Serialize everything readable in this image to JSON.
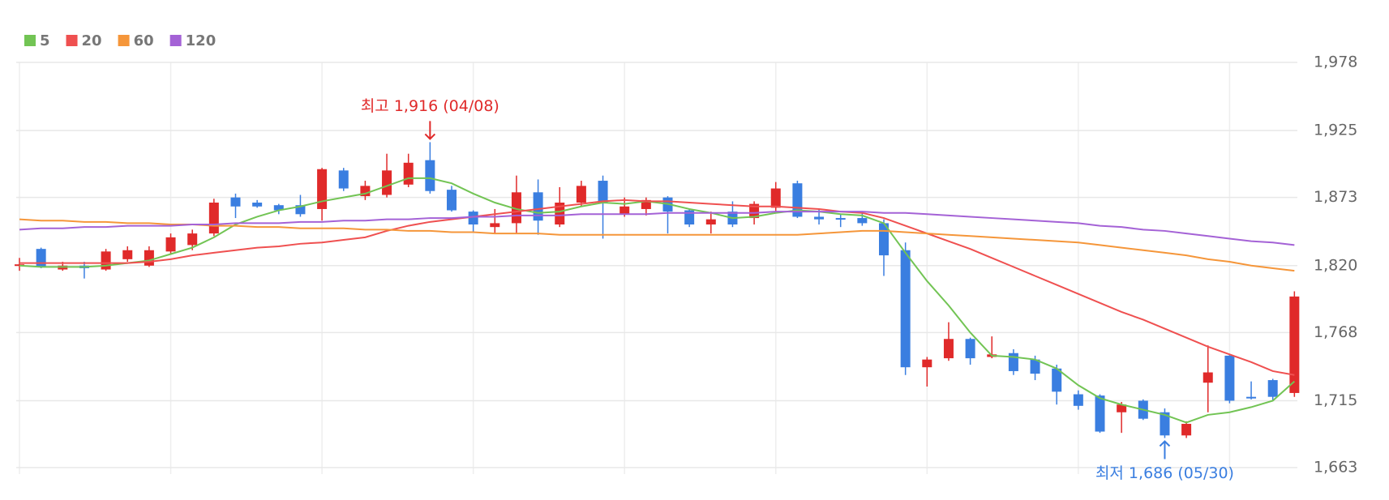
{
  "chart_data": {
    "type": "candlestick",
    "categories": [
      null,
      null,
      null,
      null,
      null,
      null,
      null,
      null,
      null,
      null,
      null,
      null,
      null,
      null,
      null,
      null,
      null,
      null,
      null,
      null,
      null,
      null,
      null,
      null,
      null,
      null,
      null,
      null,
      null,
      null,
      null,
      null,
      null,
      null,
      null,
      null,
      null,
      null,
      null,
      null,
      null,
      null,
      null,
      null,
      null,
      null,
      null,
      null,
      null,
      null,
      null,
      null,
      null,
      null,
      null,
      null,
      null,
      null,
      null,
      null
    ],
    "open": [
      1821,
      1833,
      1817,
      1820,
      1817,
      1825,
      1820,
      1831,
      1836,
      1845,
      1873,
      1869,
      1867,
      1867,
      1864,
      1894,
      1874,
      1875,
      1883,
      1902,
      1879,
      1862,
      1850,
      1853,
      1877,
      1852,
      1869,
      1886,
      1860,
      1864,
      1873,
      1863,
      1852,
      1862,
      1857,
      1865,
      1884,
      1858,
      1857,
      1857,
      1853,
      1832,
      1741,
      1748,
      1763,
      1749,
      1752,
      1747,
      1740,
      1720,
      1719,
      1706,
      1715,
      1706,
      1688,
      1729,
      1750,
      1718,
      1731,
      1721
    ],
    "high": [
      1826,
      1834,
      1823,
      1823,
      1833,
      1835,
      1835,
      1845,
      1848,
      1872,
      1876,
      1871,
      1868,
      1875,
      1896,
      1896,
      1886,
      1907,
      1907,
      1916,
      1882,
      1863,
      1864,
      1890,
      1887,
      1881,
      1886,
      1890,
      1873,
      1873,
      1874,
      1864,
      1862,
      1870,
      1870,
      1885,
      1886,
      1864,
      1860,
      1862,
      1856,
      1838,
      1749,
      1776,
      1764,
      1765,
      1755,
      1750,
      1743,
      1723,
      1720,
      1714,
      1716,
      1709,
      1699,
      1758,
      1751,
      1730,
      1732,
      1800
    ],
    "low": [
      1816,
      1818,
      1816,
      1810,
      1816,
      1823,
      1819,
      1829,
      1832,
      1843,
      1857,
      1865,
      1860,
      1858,
      1855,
      1878,
      1871,
      1873,
      1881,
      1876,
      1862,
      1846,
      1845,
      1845,
      1844,
      1850,
      1866,
      1841,
      1858,
      1859,
      1845,
      1850,
      1845,
      1850,
      1852,
      1862,
      1857,
      1852,
      1850,
      1851,
      1812,
      1735,
      1726,
      1746,
      1743,
      1748,
      1735,
      1731,
      1712,
      1708,
      1690,
      1690,
      1700,
      1686,
      1686,
      1706,
      1713,
      1716,
      1715,
      1718
    ],
    "close": [
      1821,
      1819,
      1820,
      1818,
      1831,
      1832,
      1832,
      1842,
      1845,
      1869,
      1866,
      1866,
      1863,
      1860,
      1895,
      1880,
      1882,
      1894,
      1900,
      1878,
      1863,
      1852,
      1853,
      1877,
      1855,
      1869,
      1882,
      1869,
      1866,
      1871,
      1862,
      1852,
      1856,
      1852,
      1868,
      1880,
      1858,
      1856,
      1856,
      1853,
      1828,
      1741,
      1747,
      1763,
      1748,
      1751,
      1738,
      1736,
      1722,
      1711,
      1691,
      1712,
      1701,
      1688,
      1697,
      1737,
      1715,
      1717,
      1718,
      1796
    ],
    "up_color": "#e02a2a",
    "down_color": "#3a7ee0",
    "series": [
      {
        "name": "5",
        "color": "#72c454",
        "values": [
          1820,
          1819,
          1819,
          1819,
          1820,
          1822,
          1824,
          1829,
          1834,
          1842,
          1852,
          1858,
          1863,
          1866,
          1870,
          1873,
          1876,
          1882,
          1888,
          1888,
          1884,
          1876,
          1869,
          1864,
          1861,
          1862,
          1866,
          1869,
          1868,
          1870,
          1868,
          1864,
          1861,
          1857,
          1858,
          1861,
          1863,
          1862,
          1860,
          1859,
          1853,
          1830,
          1808,
          1789,
          1768,
          1750,
          1749,
          1747,
          1740,
          1727,
          1717,
          1712,
          1708,
          1704,
          1698,
          1704,
          1706,
          1710,
          1715,
          1730
        ]
      },
      {
        "name": "20",
        "color": "#ef5050",
        "values": [
          1822,
          1822,
          1822,
          1822,
          1822,
          1822,
          1823,
          1825,
          1828,
          1830,
          1832,
          1834,
          1835,
          1837,
          1838,
          1840,
          1842,
          1847,
          1851,
          1854,
          1856,
          1858,
          1860,
          1862,
          1864,
          1866,
          1868,
          1870,
          1871,
          1870,
          1870,
          1869,
          1868,
          1867,
          1866,
          1866,
          1865,
          1864,
          1862,
          1861,
          1857,
          1851,
          1845,
          1839,
          1833,
          1826,
          1819,
          1812,
          1805,
          1798,
          1791,
          1784,
          1778,
          1771,
          1764,
          1757,
          1751,
          1745,
          1738,
          1735
        ]
      },
      {
        "name": "60",
        "color": "#f5963a",
        "values": [
          1856,
          1855,
          1855,
          1854,
          1854,
          1853,
          1853,
          1852,
          1852,
          1851,
          1851,
          1850,
          1850,
          1849,
          1849,
          1849,
          1848,
          1848,
          1847,
          1847,
          1846,
          1846,
          1845,
          1845,
          1845,
          1844,
          1844,
          1844,
          1844,
          1844,
          1844,
          1844,
          1844,
          1844,
          1844,
          1844,
          1844,
          1845,
          1846,
          1847,
          1847,
          1846,
          1845,
          1844,
          1843,
          1842,
          1841,
          1840,
          1839,
          1838,
          1836,
          1834,
          1832,
          1830,
          1828,
          1825,
          1823,
          1820,
          1818,
          1816
        ]
      },
      {
        "name": "120",
        "color": "#a462d6",
        "values": [
          1848,
          1849,
          1849,
          1850,
          1850,
          1851,
          1851,
          1851,
          1852,
          1852,
          1853,
          1853,
          1853,
          1854,
          1854,
          1855,
          1855,
          1856,
          1856,
          1857,
          1857,
          1858,
          1858,
          1859,
          1859,
          1859,
          1860,
          1860,
          1860,
          1860,
          1861,
          1861,
          1861,
          1861,
          1861,
          1862,
          1862,
          1862,
          1862,
          1862,
          1861,
          1861,
          1860,
          1859,
          1858,
          1857,
          1856,
          1855,
          1854,
          1853,
          1851,
          1850,
          1848,
          1847,
          1845,
          1843,
          1841,
          1839,
          1838,
          1836
        ]
      }
    ],
    "ylim": [
      1663,
      1978
    ],
    "yticks": [
      {
        "value": 1663,
        "label": "1,663"
      },
      {
        "value": 1715,
        "label": "1,715"
      },
      {
        "value": 1768,
        "label": "1,768"
      },
      {
        "value": 1820,
        "label": "1,820"
      },
      {
        "value": 1873,
        "label": "1,873"
      },
      {
        "value": 1925,
        "label": "1,925"
      },
      {
        "value": 1978,
        "label": "1,978"
      }
    ],
    "annotations": [
      "최고 1,916 (04/08)",
      "최저 1,686 (05/30)"
    ],
    "grid": true,
    "legend": "top-left"
  }
}
